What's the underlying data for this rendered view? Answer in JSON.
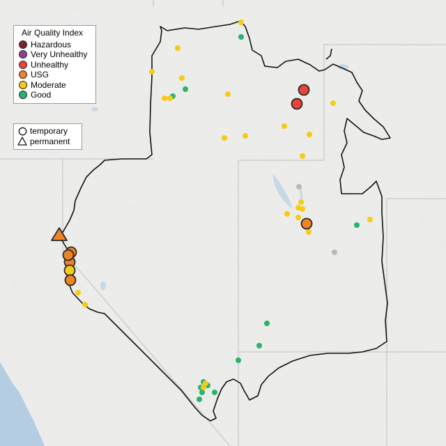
{
  "legend": {
    "title": "Air Quality Index",
    "categories": [
      {
        "label": "Hazardous",
        "color": "#7e2230"
      },
      {
        "label": "Very Unhealthy",
        "color": "#8f3f97"
      },
      {
        "label": "Unhealthy",
        "color": "#e8443a"
      },
      {
        "label": "USG",
        "color": "#ee8423"
      },
      {
        "label": "Moderate",
        "color": "#f7cb13"
      },
      {
        "label": "Good",
        "color": "#26b56a"
      }
    ],
    "monitor_types": [
      {
        "label": "temporary",
        "icon": "circle-outline-icon"
      },
      {
        "label": "permanent",
        "icon": "triangle-outline-icon"
      }
    ]
  },
  "colors": {
    "basemap": "#ececea",
    "ocean": "#b5cde3",
    "boundary": "#111111",
    "state_lines": "#c9c9c9",
    "no_data": "#b9b9b9"
  }
}
